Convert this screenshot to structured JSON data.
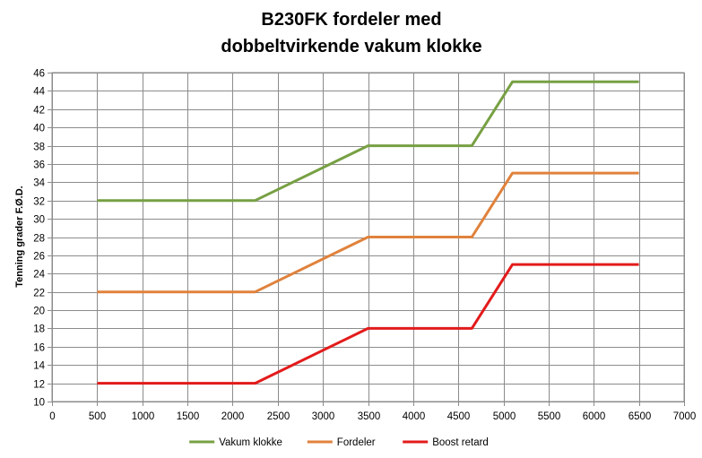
{
  "chart_data": {
    "type": "line",
    "title_lines": [
      "B230FK fordeler med",
      "dobbeltvirkende vakum klokke"
    ],
    "ylabel": "Tenning grader F.Ø.D.",
    "xlabel": "",
    "xlim": [
      0,
      7000
    ],
    "ylim": [
      10,
      46
    ],
    "x_ticks": [
      "0",
      "500",
      "1000",
      "1500",
      "2000",
      "2500",
      "3000",
      "3500",
      "4000",
      "4500",
      "5000",
      "5500",
      "6000",
      "6500",
      "7000"
    ],
    "y_ticks": [
      "10",
      "12",
      "14",
      "16",
      "18",
      "20",
      "22",
      "24",
      "26",
      "28",
      "30",
      "32",
      "34",
      "36",
      "38",
      "40",
      "42",
      "44",
      "46"
    ],
    "grid": true,
    "legend_position": "bottom",
    "series": [
      {
        "name": "Vakum klokke",
        "color": "#77a043",
        "points": [
          [
            500,
            32
          ],
          [
            2250,
            32
          ],
          [
            3500,
            38
          ],
          [
            4650,
            38
          ],
          [
            5100,
            45
          ],
          [
            6500,
            45
          ]
        ]
      },
      {
        "name": "Fordeler",
        "color": "#e0823c",
        "points": [
          [
            500,
            22
          ],
          [
            2250,
            22
          ],
          [
            3500,
            28
          ],
          [
            4650,
            28
          ],
          [
            5100,
            35
          ],
          [
            6500,
            35
          ]
        ]
      },
      {
        "name": "Boost retard",
        "color": "#e31b1b",
        "points": [
          [
            500,
            12
          ],
          [
            2250,
            12
          ],
          [
            3500,
            18
          ],
          [
            4650,
            18
          ],
          [
            5100,
            25
          ],
          [
            6500,
            25
          ]
        ]
      }
    ]
  }
}
